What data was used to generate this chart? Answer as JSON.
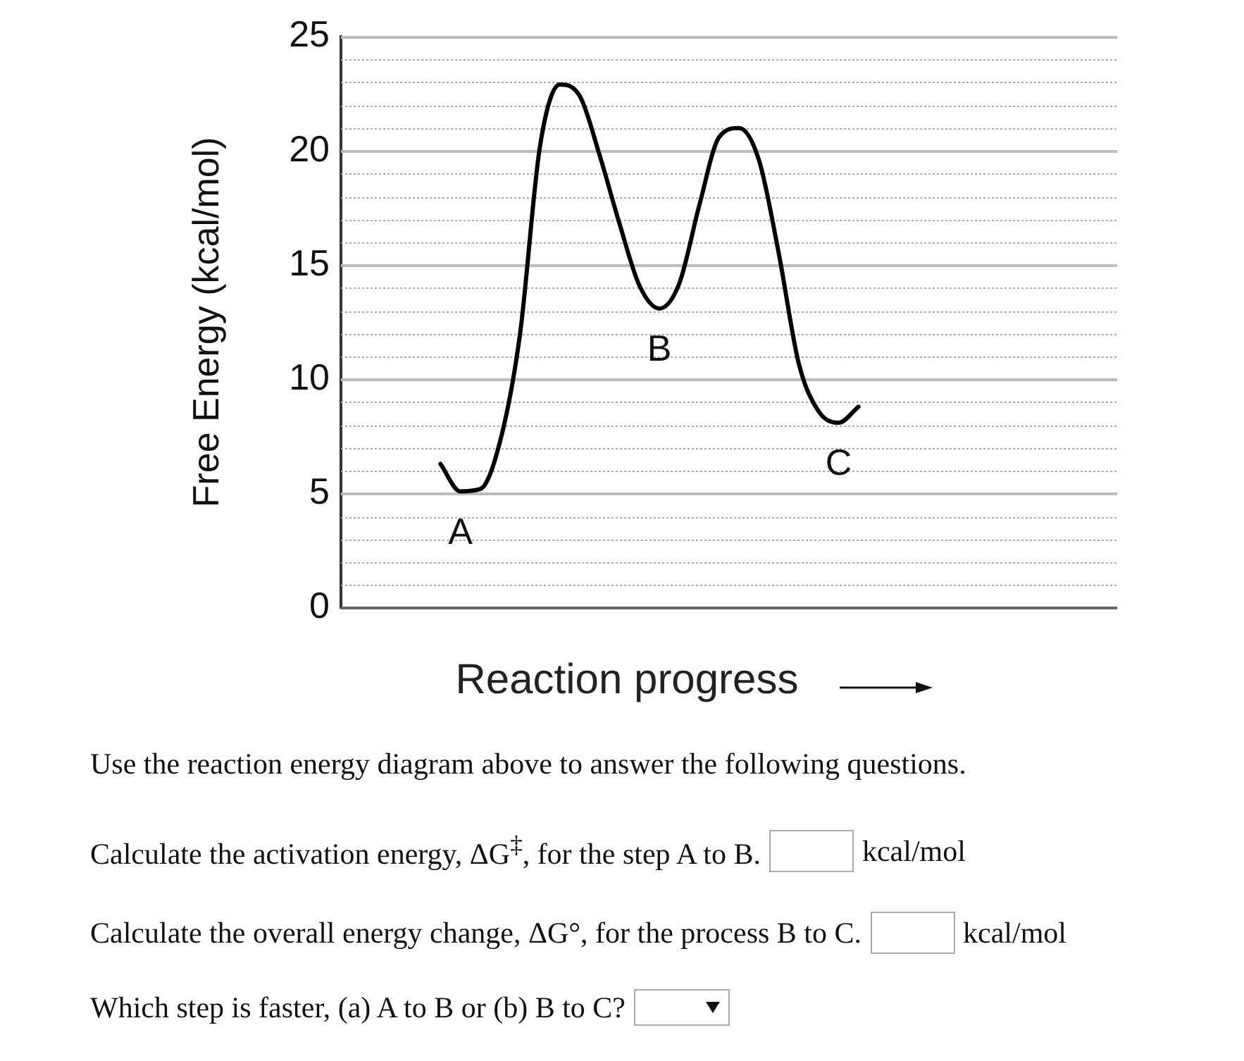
{
  "chart_data": {
    "type": "line",
    "xlabel": "Reaction progress",
    "ylabel": "Free Energy (kcal/mol)",
    "categories": [
      null,
      null,
      null,
      null,
      null,
      null,
      null,
      null,
      null,
      null,
      null,
      null,
      null,
      null,
      null,
      null,
      null,
      null,
      null,
      null,
      null,
      null,
      null,
      null,
      null,
      null,
      null,
      null,
      null,
      null,
      null,
      null,
      null,
      null,
      null,
      null,
      null,
      null,
      null,
      null
    ],
    "series": [
      {
        "color": "#000000",
        "values": [
          null,
          null,
          null,
          null,
          null,
          6.3,
          5.1,
          5.2,
          7.3,
          12.0,
          20.2,
          22.9,
          22.4,
          19.8,
          16.8,
          14.1,
          13.1,
          14.2,
          17.6,
          20.6,
          21.0,
          19.6,
          15.5,
          10.7,
          8.6,
          8.1,
          8.8,
          null,
          null,
          null,
          null,
          null,
          null,
          null,
          null,
          null,
          null,
          null,
          null,
          null
        ],
        "value_labels": [
          null,
          null,
          null,
          null,
          null,
          null,
          "A",
          null,
          null,
          null,
          null,
          null,
          null,
          null,
          null,
          null,
          "B",
          null,
          null,
          null,
          null,
          null,
          null,
          null,
          null,
          "C",
          null,
          null,
          null,
          null,
          null,
          null,
          null,
          null,
          null,
          null,
          null,
          null,
          null,
          null
        ]
      }
    ],
    "ylim": [
      0,
      25
    ],
    "yticks": [
      0,
      {
        "value": 1,
        "label": null
      },
      {
        "value": 2,
        "label": null
      },
      {
        "value": 3,
        "label": null
      },
      {
        "value": 4,
        "label": null
      },
      5,
      {
        "value": 6,
        "label": null
      },
      {
        "value": 7,
        "label": null
      },
      {
        "value": 8,
        "label": null
      },
      {
        "value": 9,
        "label": null
      },
      10,
      {
        "value": 11,
        "label": null
      },
      {
        "value": 12,
        "label": null
      },
      {
        "value": 13,
        "label": null
      },
      {
        "value": 14,
        "label": null
      },
      15,
      {
        "value": 16,
        "label": null
      },
      {
        "value": 17,
        "label": null
      },
      {
        "value": 18,
        "label": null
      },
      {
        "value": 19,
        "label": null
      },
      20,
      {
        "value": 21,
        "label": null
      },
      {
        "value": 22,
        "label": null
      },
      {
        "value": 23,
        "label": null
      },
      {
        "value": 24,
        "label": null
      },
      25
    ],
    "grid": "y",
    "legend": false,
    "marker": "none",
    "line_style": "solid",
    "annotations": [
      "Use the reaction energy diagram above to answer the following questions.",
      "Calculate the activation energy, ΔG$^{‡}$, for the step A to B.",
      "kcal/mol",
      "Calculate the overall energy change, ΔG°, for the process B to C.",
      "kcal/mol",
      "Which step is faster, (a) A to B or (b) B to C?"
    ]
  }
}
